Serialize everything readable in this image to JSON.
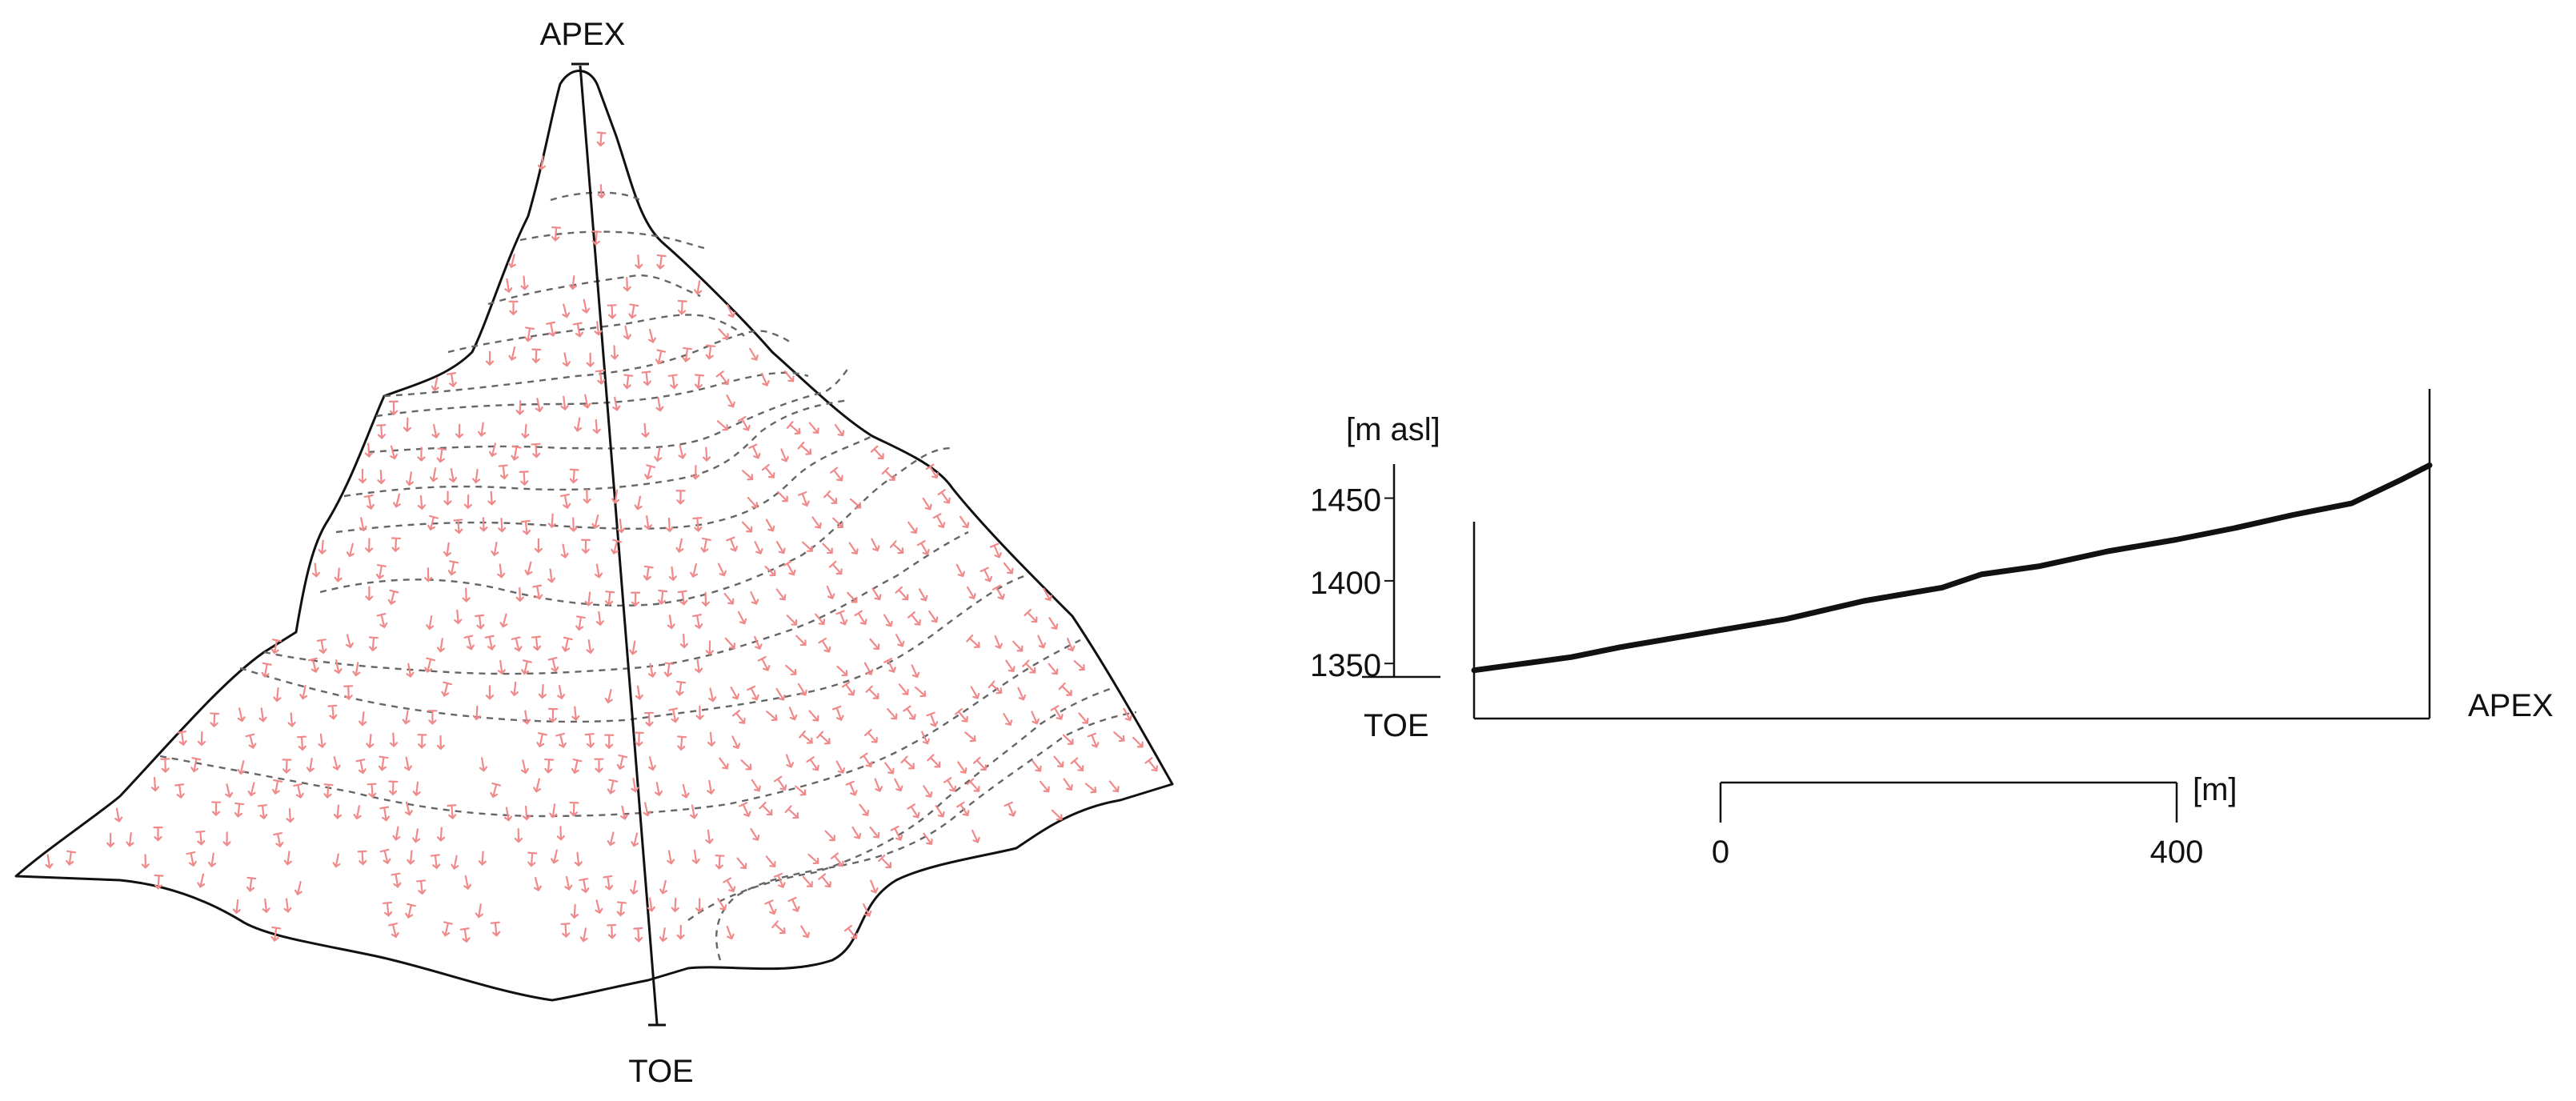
{
  "plan_view": {
    "apex_label": "APEX",
    "toe_label": "TOE",
    "symbol_color": "#f08a8a",
    "contour_color": "#666666"
  },
  "profile": {
    "unit_label": "[m asl]",
    "tick_labels": [
      "1450",
      "1400",
      "1350"
    ],
    "elevation_ticks": [
      1450,
      1400,
      1350
    ],
    "toe_label": "TOE",
    "apex_label": "APEX",
    "elevation_profile": [
      {
        "d": 0,
        "z": 1342
      },
      {
        "d": 100,
        "z": 1350
      },
      {
        "d": 150,
        "z": 1356
      },
      {
        "d": 250,
        "z": 1366
      },
      {
        "d": 320,
        "z": 1373
      },
      {
        "d": 400,
        "z": 1384
      },
      {
        "d": 480,
        "z": 1392
      },
      {
        "d": 520,
        "z": 1400
      },
      {
        "d": 580,
        "z": 1405
      },
      {
        "d": 650,
        "z": 1414
      },
      {
        "d": 720,
        "z": 1421
      },
      {
        "d": 780,
        "z": 1428
      },
      {
        "d": 840,
        "z": 1436
      },
      {
        "d": 900,
        "z": 1443
      },
      {
        "d": 950,
        "z": 1457
      },
      {
        "d": 980,
        "z": 1466
      }
    ]
  },
  "scale_bar": {
    "unit": "[m]",
    "start_label": "0",
    "end_label": "400",
    "length_m": 400
  }
}
